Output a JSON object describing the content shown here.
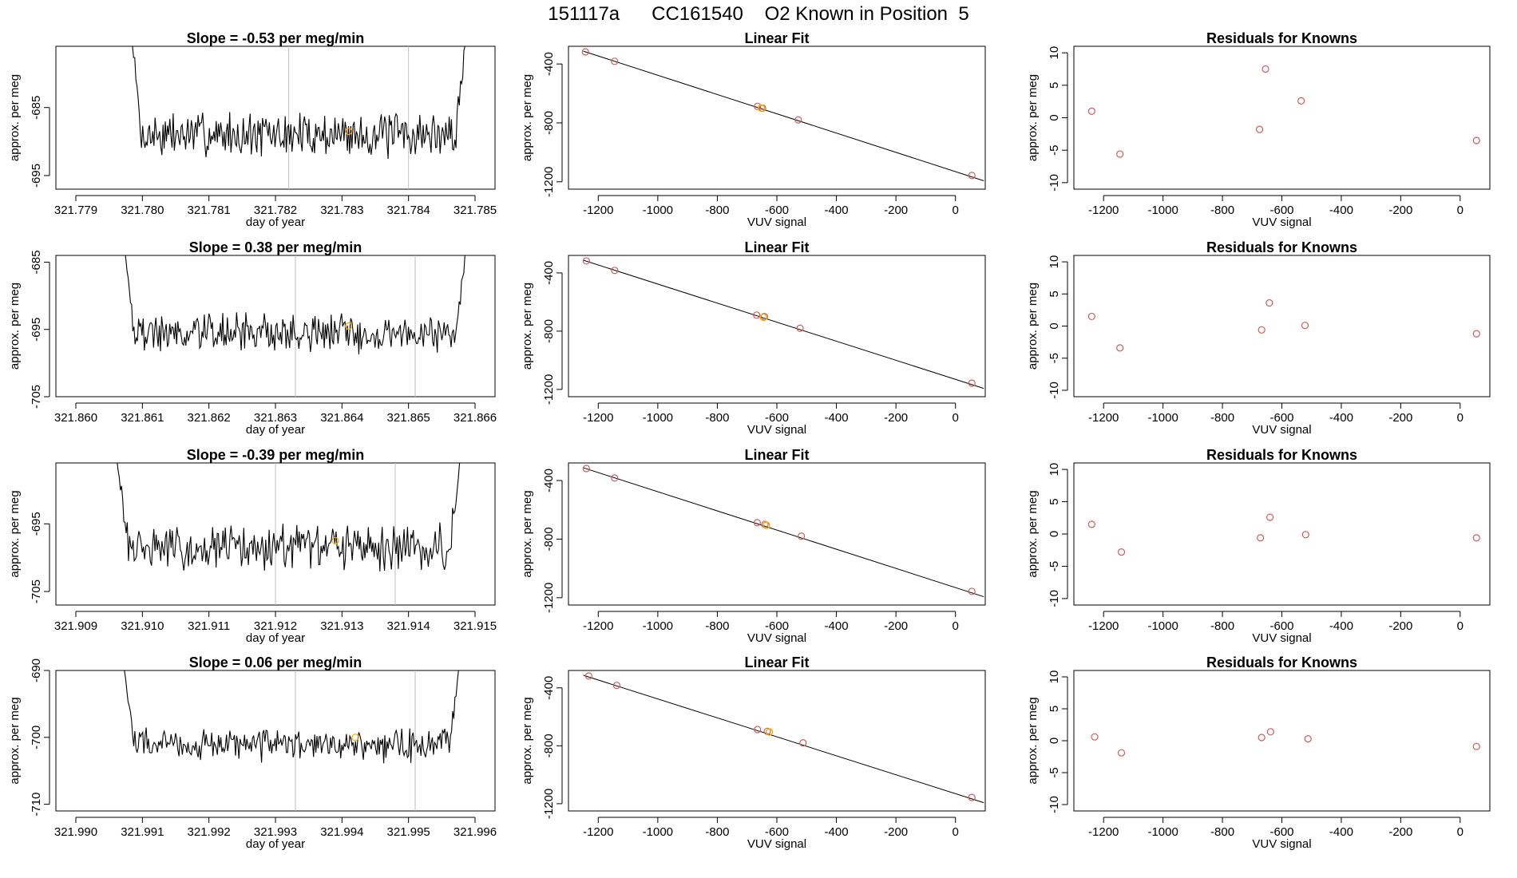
{
  "page": {
    "title": "151117a      CC161540    O2 Known in Position  5"
  },
  "colors": {
    "trace": "#000000",
    "marker_known": "#cd5c5c",
    "marker_sample": "#ffa500",
    "vline": "#bebebe"
  },
  "chart_data": [
    {
      "type": "line",
      "kind": "trace",
      "row": 0,
      "title": "Slope =  -0.53  per meg/min",
      "xlabel": "day of year",
      "ylabel": "approx. per meg",
      "xlim": [
        321.7787,
        321.7853
      ],
      "ylim": [
        -697,
        -676
      ],
      "xticks": [
        321.779,
        321.78,
        321.781,
        321.782,
        321.783,
        321.784,
        321.785
      ],
      "xtick_labels": [
        "321.779",
        "321.780",
        "321.781",
        "321.782",
        "321.783",
        "321.784",
        "321.785"
      ],
      "yticks": [
        -685,
        -695
      ],
      "ytick_labels": [
        "-685",
        "-695"
      ],
      "vlines": [
        321.7822,
        321.784
      ],
      "highlight_point": [
        321.7831,
        -688.5
      ],
      "trace": {
        "x_start": 321.7798,
        "x_end": 321.7849,
        "center": -689,
        "amp": 3.0,
        "seed": 7,
        "start_value": -670,
        "end_value": -670
      }
    },
    {
      "type": "scatter",
      "kind": "fit",
      "row": 0,
      "title": "Linear Fit",
      "xlabel": "VUV signal",
      "ylabel": "approx. per meg",
      "xlim": [
        -1300,
        100
      ],
      "ylim": [
        -1250,
        -280
      ],
      "xticks": [
        -1200,
        -1000,
        -800,
        -600,
        -400,
        -200,
        0
      ],
      "xtick_labels": [
        "-1200",
        "-1000",
        "-800",
        "-600",
        "-400",
        "-200",
        "0"
      ],
      "yticks": [
        -400,
        -800,
        -1200
      ],
      "ytick_labels": [
        "-400",
        "-800",
        "-1200"
      ],
      "fit_line": [
        [
          -1250,
          -313
        ],
        [
          95,
          -1193
        ]
      ],
      "known_points": [
        [
          -1243,
          -318
        ],
        [
          -1145,
          -382
        ],
        [
          -665,
          -688
        ],
        [
          -648,
          -700
        ],
        [
          -528,
          -780
        ],
        [
          55,
          -1157
        ]
      ],
      "sample_points": [
        [
          -652,
          -700
        ]
      ]
    },
    {
      "type": "scatter",
      "kind": "residual",
      "row": 0,
      "title": "Residuals for Knowns",
      "xlabel": "VUV signal",
      "ylabel": "approx. per meg",
      "xlim": [
        -1300,
        100
      ],
      "ylim": [
        -11,
        11
      ],
      "xticks": [
        -1200,
        -1000,
        -800,
        -600,
        -400,
        -200,
        0
      ],
      "xtick_labels": [
        "-1200",
        "-1000",
        "-800",
        "-600",
        "-400",
        "-200",
        "0"
      ],
      "yticks": [
        10,
        5,
        0,
        -5,
        -10
      ],
      "ytick_labels": [
        "10",
        "5",
        "0",
        "-5",
        "-10"
      ],
      "points": [
        [
          -1240,
          1.0
        ],
        [
          -1145,
          -5.6
        ],
        [
          -675,
          -1.8
        ],
        [
          -655,
          7.5
        ],
        [
          -535,
          2.6
        ],
        [
          55,
          -3.5
        ]
      ]
    },
    {
      "type": "line",
      "kind": "trace",
      "row": 1,
      "title": "Slope =  0.38  per meg/min",
      "xlabel": "day of year",
      "ylabel": "approx. per meg",
      "xlim": [
        321.8597,
        321.8663
      ],
      "ylim": [
        -705,
        -684
      ],
      "xticks": [
        321.86,
        321.861,
        321.862,
        321.863,
        321.864,
        321.865,
        321.866
      ],
      "xtick_labels": [
        "321.860",
        "321.861",
        "321.862",
        "321.863",
        "321.864",
        "321.865",
        "321.866"
      ],
      "yticks": [
        -685,
        -695,
        -705
      ],
      "ytick_labels": [
        "-685",
        "-695",
        "-705"
      ],
      "vlines": [
        321.8633,
        321.8651
      ],
      "highlight_point": [
        321.8641,
        -694.5
      ],
      "trace": {
        "x_start": 321.8607,
        "x_end": 321.8659,
        "center": -695.5,
        "amp": 2.6,
        "seed": 19,
        "start_value": -680,
        "end_value": -680
      }
    },
    {
      "type": "scatter",
      "kind": "fit",
      "row": 1,
      "title": "Linear Fit",
      "xlabel": "VUV signal",
      "ylabel": "approx. per meg",
      "xlim": [
        -1300,
        100
      ],
      "ylim": [
        -1250,
        -280
      ],
      "xticks": [
        -1200,
        -1000,
        -800,
        -600,
        -400,
        -200,
        0
      ],
      "xtick_labels": [
        "-1200",
        "-1000",
        "-800",
        "-600",
        "-400",
        "-200",
        "0"
      ],
      "yticks": [
        -400,
        -800,
        -1200
      ],
      "ytick_labels": [
        "-400",
        "-800",
        "-1200"
      ],
      "fit_line": [
        [
          -1250,
          -313
        ],
        [
          95,
          -1193
        ]
      ],
      "known_points": [
        [
          -1240,
          -318
        ],
        [
          -1145,
          -383
        ],
        [
          -668,
          -690
        ],
        [
          -642,
          -700
        ],
        [
          -522,
          -780
        ],
        [
          55,
          -1157
        ]
      ],
      "sample_points": [
        [
          -645,
          -705
        ]
      ]
    },
    {
      "type": "scatter",
      "kind": "residual",
      "row": 1,
      "title": "Residuals for Knowns",
      "xlabel": "VUV signal",
      "ylabel": "approx. per meg",
      "xlim": [
        -1300,
        100
      ],
      "ylim": [
        -11,
        11
      ],
      "xticks": [
        -1200,
        -1000,
        -800,
        -600,
        -400,
        -200,
        0
      ],
      "xtick_labels": [
        "-1200",
        "-1000",
        "-800",
        "-600",
        "-400",
        "-200",
        "0"
      ],
      "yticks": [
        10,
        5,
        0,
        -5,
        -10
      ],
      "ytick_labels": [
        "10",
        "5",
        "0",
        "-5",
        "-10"
      ],
      "points": [
        [
          -1240,
          1.5
        ],
        [
          -1145,
          -3.4
        ],
        [
          -668,
          -0.6
        ],
        [
          -642,
          3.6
        ],
        [
          -522,
          0.1
        ],
        [
          55,
          -1.2
        ]
      ]
    },
    {
      "type": "line",
      "kind": "trace",
      "row": 2,
      "title": "Slope =  -0.39  per meg/min",
      "xlabel": "day of year",
      "ylabel": "approx. per meg",
      "xlim": [
        321.9087,
        321.9153
      ],
      "ylim": [
        -707,
        -686
      ],
      "xticks": [
        321.909,
        321.91,
        321.911,
        321.912,
        321.913,
        321.914,
        321.915
      ],
      "xtick_labels": [
        "321.909",
        "321.910",
        "321.911",
        "321.912",
        "321.913",
        "321.914",
        "321.915"
      ],
      "yticks": [
        -695,
        -705
      ],
      "ytick_labels": [
        "-695",
        "-705"
      ],
      "vlines": [
        321.912,
        321.9138
      ],
      "highlight_point": [
        321.9129,
        -697.5
      ],
      "trace": {
        "x_start": 321.9096,
        "x_end": 321.9148,
        "center": -698.5,
        "amp": 3.0,
        "seed": 31,
        "start_value": -684,
        "end_value": -684
      }
    },
    {
      "type": "scatter",
      "kind": "fit",
      "row": 2,
      "title": "Linear Fit",
      "xlabel": "VUV signal",
      "ylabel": "approx. per meg",
      "xlim": [
        -1300,
        100
      ],
      "ylim": [
        -1250,
        -280
      ],
      "xticks": [
        -1200,
        -1000,
        -800,
        -600,
        -400,
        -200,
        0
      ],
      "xtick_labels": [
        "-1200",
        "-1000",
        "-800",
        "-600",
        "-400",
        "-200",
        "0"
      ],
      "yticks": [
        -400,
        -800,
        -1200
      ],
      "ytick_labels": [
        "-400",
        "-800",
        "-1200"
      ],
      "fit_line": [
        [
          -1250,
          -313
        ],
        [
          95,
          -1193
        ]
      ],
      "known_points": [
        [
          -1240,
          -318
        ],
        [
          -1145,
          -383
        ],
        [
          -666,
          -688
        ],
        [
          -640,
          -700
        ],
        [
          -518,
          -780
        ],
        [
          55,
          -1157
        ]
      ],
      "sample_points": [
        [
          -635,
          -705
        ]
      ]
    },
    {
      "type": "scatter",
      "kind": "residual",
      "row": 2,
      "title": "Residuals for Knowns",
      "xlabel": "VUV signal",
      "ylabel": "approx. per meg",
      "xlim": [
        -1300,
        100
      ],
      "ylim": [
        -11,
        11
      ],
      "xticks": [
        -1200,
        -1000,
        -800,
        -600,
        -400,
        -200,
        0
      ],
      "xtick_labels": [
        "-1200",
        "-1000",
        "-800",
        "-600",
        "-400",
        "-200",
        "0"
      ],
      "yticks": [
        10,
        5,
        0,
        -5,
        -10
      ],
      "ytick_labels": [
        "10",
        "5",
        "0",
        "-5",
        "-10"
      ],
      "points": [
        [
          -1240,
          1.5
        ],
        [
          -1140,
          -2.8
        ],
        [
          -672,
          -0.6
        ],
        [
          -640,
          2.6
        ],
        [
          -520,
          -0.1
        ],
        [
          55,
          -0.6
        ]
      ]
    },
    {
      "type": "line",
      "kind": "trace",
      "row": 3,
      "title": "Slope =  0.06  per meg/min",
      "xlabel": "day of year",
      "ylabel": "approx. per meg",
      "xlim": [
        321.9897,
        321.9963
      ],
      "ylim": [
        -711,
        -690
      ],
      "xticks": [
        321.99,
        321.991,
        321.992,
        321.993,
        321.994,
        321.995,
        321.996
      ],
      "xtick_labels": [
        "321.990",
        "321.991",
        "321.992",
        "321.993",
        "321.994",
        "321.995",
        "321.996"
      ],
      "yticks": [
        -690,
        -700,
        -710
      ],
      "ytick_labels": [
        "-690",
        "-700",
        "-710"
      ],
      "vlines": [
        321.9933,
        321.9951
      ],
      "highlight_point": [
        321.9942,
        -700
      ],
      "trace": {
        "x_start": 321.9907,
        "x_end": 321.9958,
        "center": -701,
        "amp": 2.2,
        "seed": 47,
        "start_value": -688,
        "end_value": -686
      }
    },
    {
      "type": "scatter",
      "kind": "fit",
      "row": 3,
      "title": "Linear Fit",
      "xlabel": "VUV signal",
      "ylabel": "approx. per meg",
      "xlim": [
        -1300,
        100
      ],
      "ylim": [
        -1250,
        -280
      ],
      "xticks": [
        -1200,
        -1000,
        -800,
        -600,
        -400,
        -200,
        0
      ],
      "xtick_labels": [
        "-1200",
        "-1000",
        "-800",
        "-600",
        "-400",
        "-200",
        "0"
      ],
      "yticks": [
        -400,
        -800,
        -1200
      ],
      "ytick_labels": [
        "-400",
        "-800",
        "-1200"
      ],
      "fit_line": [
        [
          -1250,
          -313
        ],
        [
          95,
          -1193
        ]
      ],
      "known_points": [
        [
          -1232,
          -318
        ],
        [
          -1138,
          -383
        ],
        [
          -665,
          -688
        ],
        [
          -632,
          -700
        ],
        [
          -512,
          -780
        ],
        [
          55,
          -1157
        ]
      ],
      "sample_points": [
        [
          -625,
          -705
        ]
      ]
    },
    {
      "type": "scatter",
      "kind": "residual",
      "row": 3,
      "title": "Residuals for Knowns",
      "xlabel": "VUV signal",
      "ylabel": "approx. per meg",
      "xlim": [
        -1300,
        100
      ],
      "ylim": [
        -11,
        11
      ],
      "xticks": [
        -1200,
        -1000,
        -800,
        -600,
        -400,
        -200,
        0
      ],
      "xtick_labels": [
        "-1200",
        "-1000",
        "-800",
        "-600",
        "-400",
        "-200",
        "0"
      ],
      "yticks": [
        10,
        5,
        0,
        -5,
        -10
      ],
      "ytick_labels": [
        "10",
        "5",
        "0",
        "-5",
        "-10"
      ],
      "points": [
        [
          -1230,
          0.6
        ],
        [
          -1140,
          -1.9
        ],
        [
          -668,
          0.5
        ],
        [
          -638,
          1.4
        ],
        [
          -512,
          0.3
        ],
        [
          55,
          -0.9
        ]
      ]
    }
  ]
}
